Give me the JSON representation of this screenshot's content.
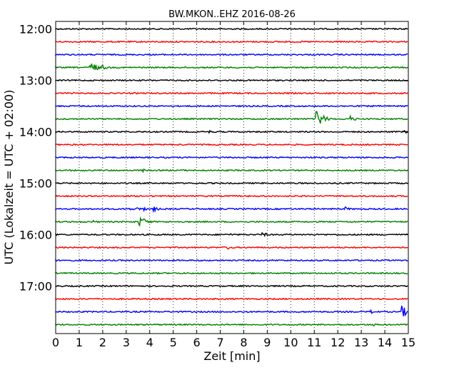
{
  "chart_data": {
    "type": "line",
    "title": "BW.MKON..EHZ 2016-08-26",
    "xlabel": "Zeit  [min]",
    "ylabel": "UTC (Lokalzeit = UTC + 02:00)",
    "xlim": [
      0,
      15
    ],
    "x_ticks": [
      0,
      1,
      2,
      3,
      4,
      5,
      6,
      7,
      8,
      9,
      10,
      11,
      12,
      13,
      14,
      15
    ],
    "y_tick_labels": [
      "12:00",
      "13:00",
      "14:00",
      "15:00",
      "16:00",
      "17:00"
    ],
    "grid": "vertical dotted lines at each minute",
    "colors": {
      "cycle": [
        "#000000",
        "#ff0000",
        "#0000ff",
        "#008000"
      ]
    },
    "series": [
      {
        "start": "12:00",
        "color": "#000000",
        "events": []
      },
      {
        "start": "12:15",
        "color": "#ff0000",
        "events": [
          {
            "x": 9.8,
            "amp": 1.5
          }
        ]
      },
      {
        "start": "12:30",
        "color": "#0000ff",
        "events": []
      },
      {
        "start": "12:45",
        "color": "#008000",
        "events": [
          {
            "x": 1.45,
            "amp": 12
          },
          {
            "x": 1.95,
            "amp": 4
          }
        ]
      },
      {
        "start": "13:00",
        "color": "#000000",
        "events": []
      },
      {
        "start": "13:15",
        "color": "#ff0000",
        "events": []
      },
      {
        "start": "13:30",
        "color": "#0000ff",
        "events": []
      },
      {
        "start": "13:45",
        "color": "#008000",
        "events": [
          {
            "x": 11.05,
            "amp": 20
          },
          {
            "x": 12.5,
            "amp": 5
          }
        ]
      },
      {
        "start": "14:00",
        "color": "#000000",
        "events": [
          {
            "x": 6.5,
            "amp": 2.5
          },
          {
            "x": 14.8,
            "amp": 3
          }
        ]
      },
      {
        "start": "14:15",
        "color": "#ff0000",
        "events": []
      },
      {
        "start": "14:30",
        "color": "#0000ff",
        "events": []
      },
      {
        "start": "14:45",
        "color": "#008000",
        "events": [
          {
            "x": 3.7,
            "amp": 2.5
          }
        ]
      },
      {
        "start": "15:00",
        "color": "#000000",
        "events": []
      },
      {
        "start": "15:15",
        "color": "#ff0000",
        "events": []
      },
      {
        "start": "15:30",
        "color": "#0000ff",
        "events": [
          {
            "x": 3.1,
            "amp": 3
          },
          {
            "x": 3.45,
            "amp": 3
          },
          {
            "x": 3.7,
            "amp": 3
          },
          {
            "x": 4.15,
            "amp": 4
          },
          {
            "x": 12.3,
            "amp": 3
          }
        ]
      },
      {
        "start": "15:45",
        "color": "#008000",
        "events": [
          {
            "x": 1.6,
            "amp": 2
          },
          {
            "x": 3.5,
            "amp": 9
          },
          {
            "x": 3.75,
            "amp": 5
          }
        ]
      },
      {
        "start": "16:00",
        "color": "#000000",
        "events": [
          {
            "x": 7.4,
            "amp": 2
          },
          {
            "x": 8.75,
            "amp": 4
          }
        ]
      },
      {
        "start": "16:15",
        "color": "#ff0000",
        "events": [
          {
            "x": 7.3,
            "amp": 3
          }
        ]
      },
      {
        "start": "16:30",
        "color": "#0000ff",
        "events": []
      },
      {
        "start": "16:45",
        "color": "#008000",
        "events": []
      },
      {
        "start": "17:00",
        "color": "#000000",
        "events": []
      },
      {
        "start": "17:15",
        "color": "#ff0000",
        "events": []
      },
      {
        "start": "17:30",
        "color": "#0000ff",
        "events": [
          {
            "x": 13.4,
            "amp": 3
          },
          {
            "x": 14.7,
            "amp": 10
          }
        ]
      },
      {
        "start": "17:45",
        "color": "#008000",
        "events": [
          {
            "x": 13.5,
            "amp": 2
          }
        ]
      }
    ]
  }
}
